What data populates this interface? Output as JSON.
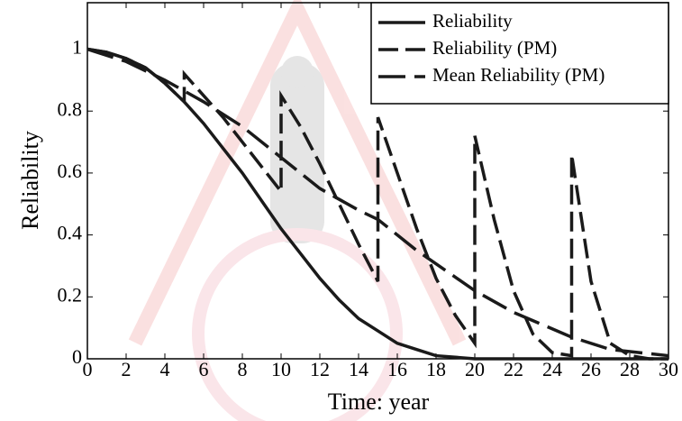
{
  "chart_data": {
    "type": "line",
    "xlabel": "Time: year",
    "ylabel": "Reliability",
    "xlim": [
      0,
      30
    ],
    "ylim": [
      0,
      1.15
    ],
    "xticks": [
      0,
      2,
      4,
      6,
      8,
      10,
      12,
      14,
      16,
      18,
      20,
      22,
      24,
      26,
      28,
      30
    ],
    "yticks": [
      0,
      0.2,
      0.4,
      0.6,
      0.8,
      1
    ],
    "grid": false,
    "legend": "upper right",
    "series": [
      {
        "name": "Reliability",
        "color": "#1a1a1a",
        "dash": "solid",
        "x": [
          0,
          1,
          2,
          3,
          4,
          5,
          6,
          7,
          8,
          9,
          10,
          11,
          12,
          13,
          14,
          15,
          16,
          17,
          18,
          19,
          20,
          22,
          24,
          26,
          28,
          30
        ],
        "values": [
          1,
          0.99,
          0.97,
          0.94,
          0.89,
          0.83,
          0.76,
          0.68,
          0.6,
          0.51,
          0.42,
          0.34,
          0.26,
          0.19,
          0.13,
          0.09,
          0.05,
          0.03,
          0.01,
          0.005,
          0,
          0,
          0,
          0,
          0,
          0
        ]
      },
      {
        "name": "Reliability (PM)",
        "color": "#1a1a1a",
        "dash": "dashed",
        "x": [
          0,
          1,
          2,
          3,
          4,
          5,
          5,
          6,
          7,
          8,
          9,
          10,
          10,
          11,
          12,
          13,
          14,
          15,
          15,
          16,
          17,
          18,
          19,
          20,
          20,
          21,
          22,
          23,
          24,
          25,
          25,
          26,
          27,
          28,
          29,
          30
        ],
        "values": [
          1,
          0.99,
          0.97,
          0.94,
          0.89,
          0.83,
          0.92,
          0.85,
          0.78,
          0.7,
          0.62,
          0.54,
          0.85,
          0.75,
          0.63,
          0.5,
          0.37,
          0.25,
          0.78,
          0.6,
          0.42,
          0.26,
          0.14,
          0.05,
          0.72,
          0.45,
          0.22,
          0.08,
          0.02,
          0.01,
          0.66,
          0.25,
          0.05,
          0.01,
          0,
          0
        ]
      },
      {
        "name": "Mean Reliability (PM)",
        "color": "#1a1a1a",
        "dash": "long-dash",
        "x": [
          0,
          2,
          4,
          6,
          8,
          10,
          12,
          14,
          15,
          17,
          20,
          22,
          25,
          27,
          30
        ],
        "values": [
          1,
          0.96,
          0.9,
          0.83,
          0.75,
          0.65,
          0.55,
          0.48,
          0.45,
          0.35,
          0.22,
          0.15,
          0.07,
          0.03,
          0.01
        ]
      }
    ]
  }
}
